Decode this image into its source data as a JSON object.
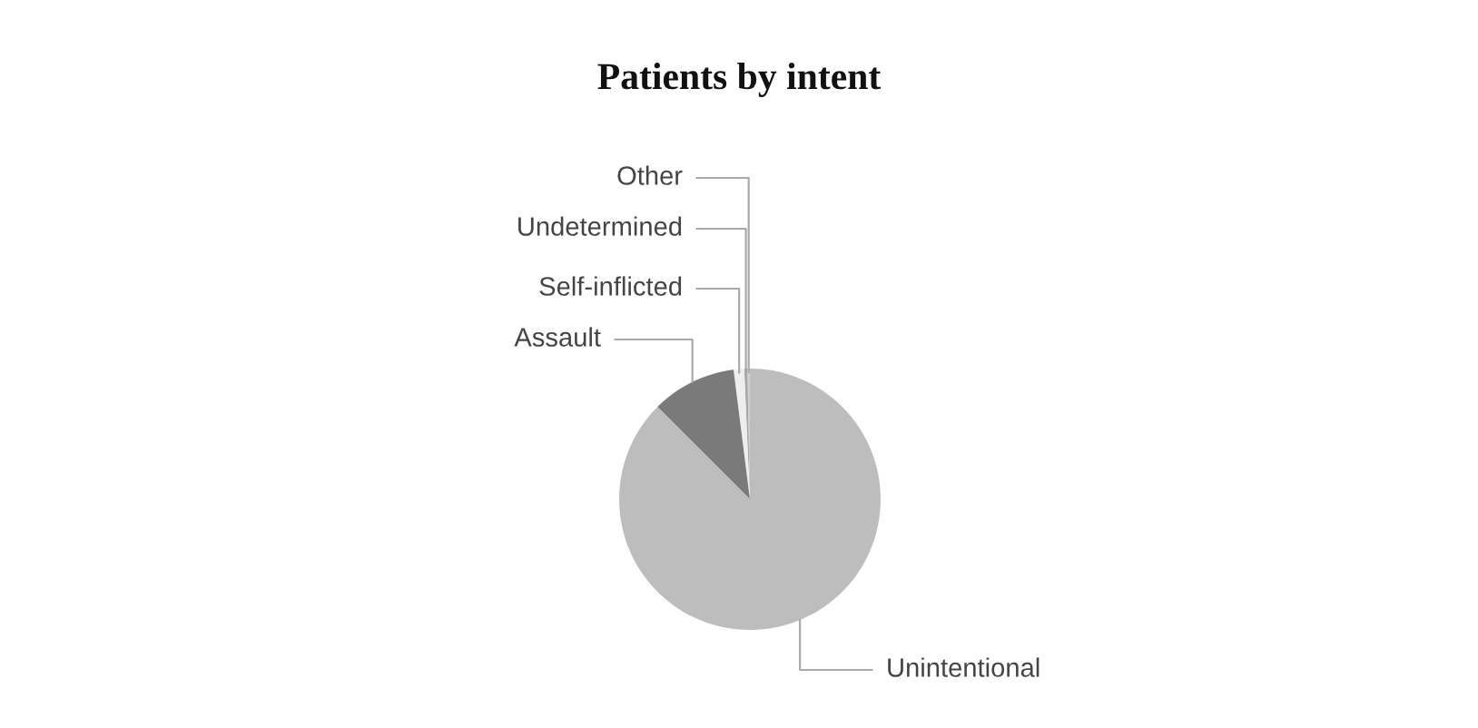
{
  "chart_data": {
    "type": "pie",
    "title": "Patients by intent",
    "categories": [
      "Other",
      "Undetermined",
      "Self-inflicted",
      "Assault",
      "Unintentional"
    ],
    "values": [
      0.3,
      0.4,
      1.3,
      10.5,
      87.5
    ],
    "colors": [
      "#d0d0d0",
      "#a8a8a8",
      "#eeeeee",
      "#7a7a7a",
      "#bdbdbd"
    ]
  }
}
